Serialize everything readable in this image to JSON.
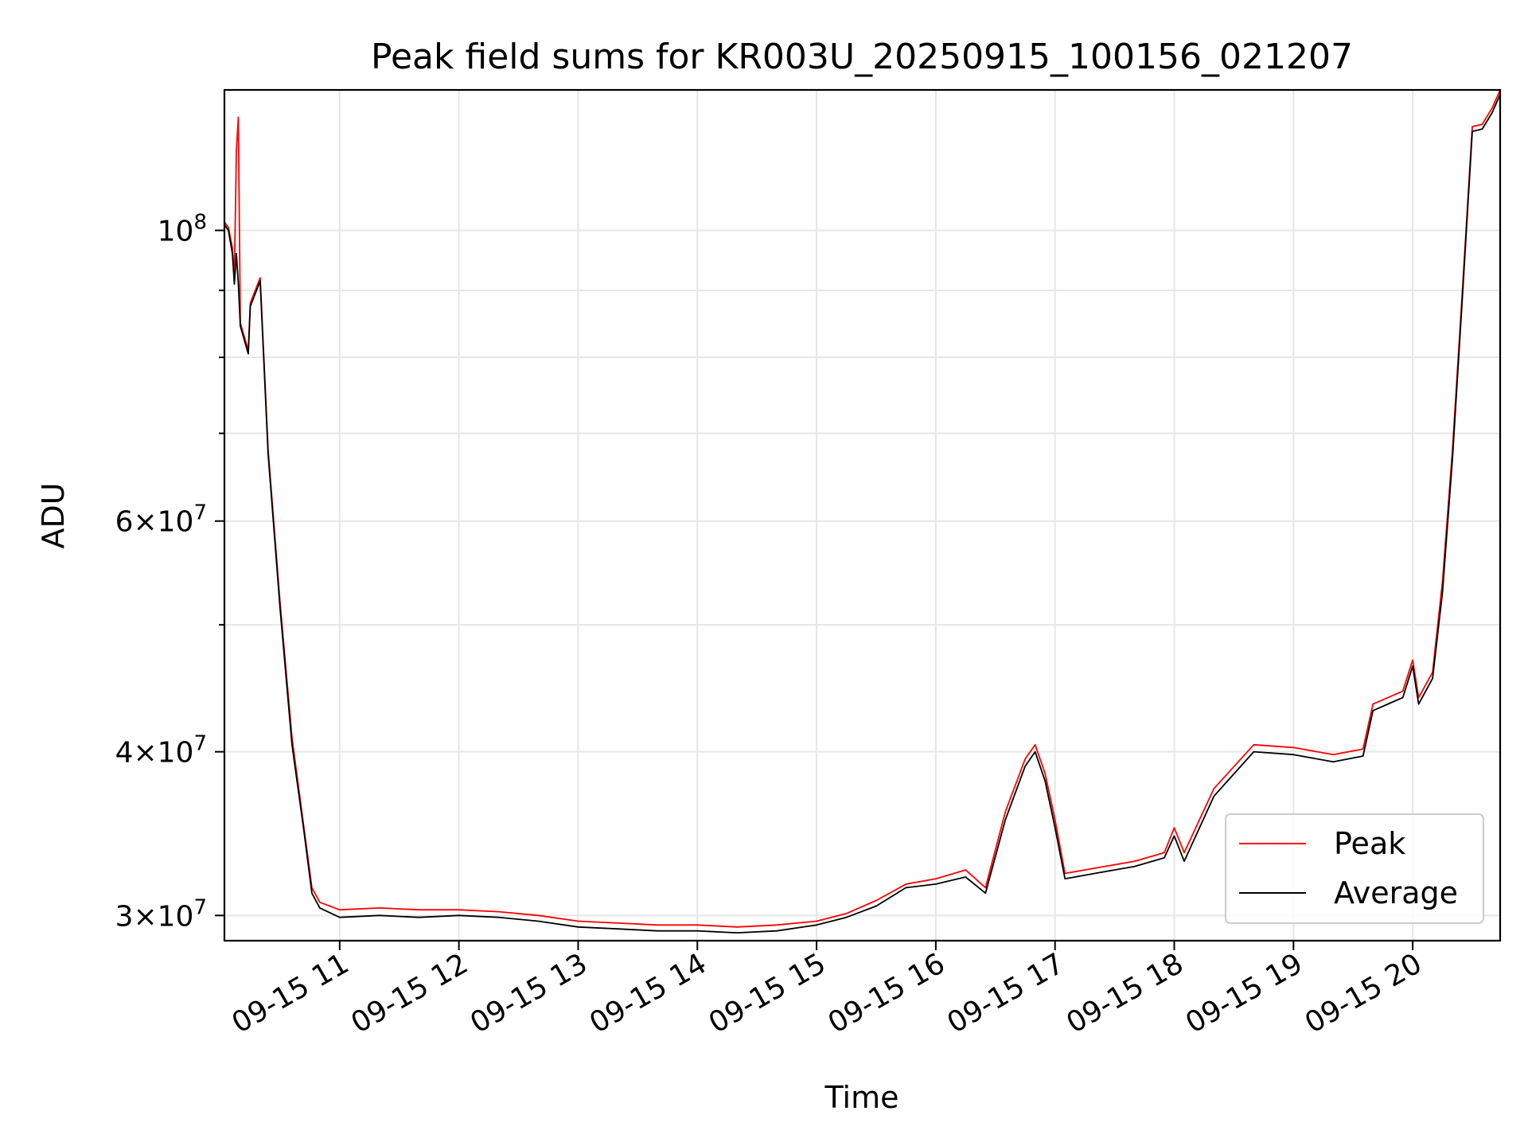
{
  "chart_data": {
    "type": "line",
    "title": "Peak field sums for KR003U_20250915_100156_021207",
    "xlabel": "Time",
    "ylabel": "ADU",
    "yscale": "log",
    "ylim": [
      28700000,
      128000000
    ],
    "xlim": [
      "2025-09-15 10:02",
      "2025-09-15 20:44"
    ],
    "grid": true,
    "legend_position": "lower-right",
    "x_ticks": [
      {
        "value": "2025-09-15 11:00",
        "label": "09-15 11"
      },
      {
        "value": "2025-09-15 12:00",
        "label": "09-15 12"
      },
      {
        "value": "2025-09-15 13:00",
        "label": "09-15 13"
      },
      {
        "value": "2025-09-15 14:00",
        "label": "09-15 14"
      },
      {
        "value": "2025-09-15 15:00",
        "label": "09-15 15"
      },
      {
        "value": "2025-09-15 16:00",
        "label": "09-15 16"
      },
      {
        "value": "2025-09-15 17:00",
        "label": "09-15 17"
      },
      {
        "value": "2025-09-15 18:00",
        "label": "09-15 18"
      },
      {
        "value": "2025-09-15 19:00",
        "label": "09-15 19"
      },
      {
        "value": "2025-09-15 20:00",
        "label": "09-15 20"
      }
    ],
    "y_major_ticks": [
      {
        "value": 30000000,
        "mant": "3",
        "exp": "7"
      },
      {
        "value": 40000000,
        "mant": "4",
        "exp": "7"
      },
      {
        "value": 60000000,
        "mant": "6",
        "exp": "7"
      },
      {
        "value": 100000000,
        "mant": "",
        "exp": "8"
      }
    ],
    "y_minor_ticks": [
      50000000,
      70000000,
      80000000,
      90000000
    ],
    "series": [
      {
        "name": "Peak",
        "color": "#ff0000",
        "points": [
          [
            "2025-09-15 10:02",
            101500000
          ],
          [
            "2025-09-15 10:04",
            100500000
          ],
          [
            "2025-09-15 10:06",
            97000000
          ],
          [
            "2025-09-15 10:07",
            92000000
          ],
          [
            "2025-09-15 10:08",
            115000000
          ],
          [
            "2025-09-15 10:09",
            122000000
          ],
          [
            "2025-09-15 10:10",
            85000000
          ],
          [
            "2025-09-15 10:14",
            81000000
          ],
          [
            "2025-09-15 10:15",
            88000000
          ],
          [
            "2025-09-15 10:20",
            92000000
          ],
          [
            "2025-09-15 10:24",
            68000000
          ],
          [
            "2025-09-15 10:30",
            52000000
          ],
          [
            "2025-09-15 10:36",
            41000000
          ],
          [
            "2025-09-15 10:42",
            35000000
          ],
          [
            "2025-09-15 10:46",
            31500000
          ],
          [
            "2025-09-15 10:50",
            30700000
          ],
          [
            "2025-09-15 11:00",
            30300000
          ],
          [
            "2025-09-15 11:20",
            30400000
          ],
          [
            "2025-09-15 11:40",
            30300000
          ],
          [
            "2025-09-15 12:00",
            30300000
          ],
          [
            "2025-09-15 12:20",
            30200000
          ],
          [
            "2025-09-15 12:40",
            30000000
          ],
          [
            "2025-09-15 13:00",
            29700000
          ],
          [
            "2025-09-15 13:20",
            29600000
          ],
          [
            "2025-09-15 13:40",
            29500000
          ],
          [
            "2025-09-15 14:00",
            29500000
          ],
          [
            "2025-09-15 14:20",
            29400000
          ],
          [
            "2025-09-15 14:40",
            29500000
          ],
          [
            "2025-09-15 15:00",
            29700000
          ],
          [
            "2025-09-15 15:15",
            30100000
          ],
          [
            "2025-09-15 15:30",
            30800000
          ],
          [
            "2025-09-15 15:45",
            31700000
          ],
          [
            "2025-09-15 16:00",
            32000000
          ],
          [
            "2025-09-15 16:15",
            32500000
          ],
          [
            "2025-09-15 16:25",
            31500000
          ],
          [
            "2025-09-15 16:35",
            36000000
          ],
          [
            "2025-09-15 16:45",
            39500000
          ],
          [
            "2025-09-15 16:50",
            40500000
          ],
          [
            "2025-09-15 16:55",
            38500000
          ],
          [
            "2025-09-15 17:00",
            35500000
          ],
          [
            "2025-09-15 17:05",
            32300000
          ],
          [
            "2025-09-15 17:20",
            32600000
          ],
          [
            "2025-09-15 17:40",
            33000000
          ],
          [
            "2025-09-15 17:55",
            33500000
          ],
          [
            "2025-09-15 18:00",
            35000000
          ],
          [
            "2025-09-15 18:05",
            33500000
          ],
          [
            "2025-09-15 18:20",
            37500000
          ],
          [
            "2025-09-15 18:40",
            40500000
          ],
          [
            "2025-09-15 19:00",
            40300000
          ],
          [
            "2025-09-15 19:20",
            39800000
          ],
          [
            "2025-09-15 19:35",
            40200000
          ],
          [
            "2025-09-15 19:40",
            43500000
          ],
          [
            "2025-09-15 19:55",
            44500000
          ],
          [
            "2025-09-15 20:00",
            47000000
          ],
          [
            "2025-09-15 20:03",
            44000000
          ],
          [
            "2025-09-15 20:10",
            46000000
          ],
          [
            "2025-09-15 20:15",
            54000000
          ],
          [
            "2025-09-15 20:20",
            68000000
          ],
          [
            "2025-09-15 20:25",
            90000000
          ],
          [
            "2025-09-15 20:30",
            120000000
          ],
          [
            "2025-09-15 20:35",
            120500000
          ],
          [
            "2025-09-15 20:40",
            124000000
          ],
          [
            "2025-09-15 20:44",
            128000000
          ]
        ]
      },
      {
        "name": "Average",
        "color": "#000000",
        "points": [
          [
            "2025-09-15 10:02",
            101000000
          ],
          [
            "2025-09-15 10:04",
            100000000
          ],
          [
            "2025-09-15 10:06",
            96000000
          ],
          [
            "2025-09-15 10:07",
            91000000
          ],
          [
            "2025-09-15 10:08",
            96000000
          ],
          [
            "2025-09-15 10:09",
            91000000
          ],
          [
            "2025-09-15 10:10",
            84500000
          ],
          [
            "2025-09-15 10:14",
            80500000
          ],
          [
            "2025-09-15 10:15",
            87500000
          ],
          [
            "2025-09-15 10:20",
            91500000
          ],
          [
            "2025-09-15 10:24",
            67500000
          ],
          [
            "2025-09-15 10:30",
            51500000
          ],
          [
            "2025-09-15 10:36",
            40500000
          ],
          [
            "2025-09-15 10:42",
            34800000
          ],
          [
            "2025-09-15 10:46",
            31200000
          ],
          [
            "2025-09-15 10:50",
            30400000
          ],
          [
            "2025-09-15 11:00",
            29900000
          ],
          [
            "2025-09-15 11:20",
            30000000
          ],
          [
            "2025-09-15 11:40",
            29900000
          ],
          [
            "2025-09-15 12:00",
            30000000
          ],
          [
            "2025-09-15 12:20",
            29900000
          ],
          [
            "2025-09-15 12:40",
            29700000
          ],
          [
            "2025-09-15 13:00",
            29400000
          ],
          [
            "2025-09-15 13:20",
            29300000
          ],
          [
            "2025-09-15 13:40",
            29200000
          ],
          [
            "2025-09-15 14:00",
            29200000
          ],
          [
            "2025-09-15 14:20",
            29100000
          ],
          [
            "2025-09-15 14:40",
            29200000
          ],
          [
            "2025-09-15 15:00",
            29500000
          ],
          [
            "2025-09-15 15:15",
            29900000
          ],
          [
            "2025-09-15 15:30",
            30500000
          ],
          [
            "2025-09-15 15:45",
            31500000
          ],
          [
            "2025-09-15 16:00",
            31700000
          ],
          [
            "2025-09-15 16:15",
            32100000
          ],
          [
            "2025-09-15 16:25",
            31200000
          ],
          [
            "2025-09-15 16:35",
            35500000
          ],
          [
            "2025-09-15 16:45",
            39000000
          ],
          [
            "2025-09-15 16:50",
            40000000
          ],
          [
            "2025-09-15 16:55",
            38000000
          ],
          [
            "2025-09-15 17:00",
            35000000
          ],
          [
            "2025-09-15 17:05",
            32000000
          ],
          [
            "2025-09-15 17:20",
            32300000
          ],
          [
            "2025-09-15 17:40",
            32700000
          ],
          [
            "2025-09-15 17:55",
            33200000
          ],
          [
            "2025-09-15 18:00",
            34500000
          ],
          [
            "2025-09-15 18:05",
            33000000
          ],
          [
            "2025-09-15 18:20",
            37000000
          ],
          [
            "2025-09-15 18:40",
            40000000
          ],
          [
            "2025-09-15 19:00",
            39800000
          ],
          [
            "2025-09-15 19:20",
            39300000
          ],
          [
            "2025-09-15 19:35",
            39700000
          ],
          [
            "2025-09-15 19:40",
            43000000
          ],
          [
            "2025-09-15 19:55",
            44000000
          ],
          [
            "2025-09-15 20:00",
            46500000
          ],
          [
            "2025-09-15 20:03",
            43500000
          ],
          [
            "2025-09-15 20:10",
            45500000
          ],
          [
            "2025-09-15 20:15",
            53000000
          ],
          [
            "2025-09-15 20:20",
            67000000
          ],
          [
            "2025-09-15 20:25",
            89000000
          ],
          [
            "2025-09-15 20:30",
            119000000
          ],
          [
            "2025-09-15 20:35",
            119500000
          ],
          [
            "2025-09-15 20:40",
            123000000
          ],
          [
            "2025-09-15 20:44",
            127000000
          ]
        ]
      }
    ]
  }
}
